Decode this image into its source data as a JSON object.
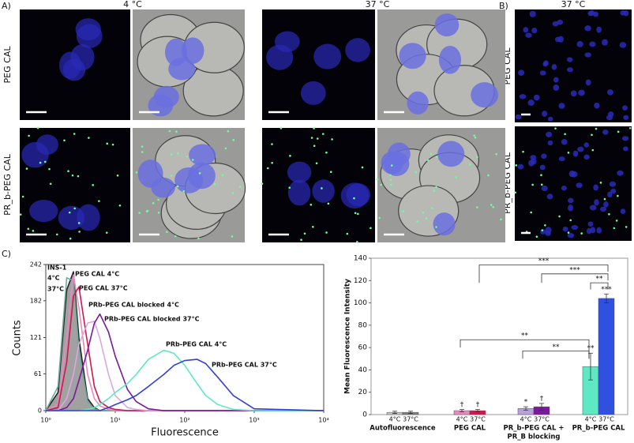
{
  "panel_a": {
    "label": "A)",
    "columns": [
      "4 °C",
      "37 °C"
    ],
    "rows": [
      "PEG CAL",
      "PR_b-PEG CAL"
    ]
  },
  "panel_b": {
    "label": "B)",
    "column": "37 °C",
    "rows": [
      "PEG CAL",
      "PR_b-PEG CAL"
    ]
  },
  "panel_c": {
    "label": "C)"
  },
  "chart_data": [
    {
      "type": "line",
      "xlabel": "Fluorescence",
      "ylabel": "Counts",
      "log_x": true,
      "annotation": "INS-1",
      "x": [
        1,
        1.5,
        2,
        2.5,
        3,
        4,
        5,
        6,
        8,
        10,
        15,
        20,
        30,
        50,
        70,
        100,
        150,
        200,
        300,
        500,
        1000,
        10000
      ],
      "xlim": [
        1,
        10000
      ],
      "xticks": [
        {
          "value": 1,
          "label": "10⁰"
        },
        {
          "value": 10,
          "label": "10¹"
        },
        {
          "value": 100,
          "label": "10²"
        },
        {
          "value": 1000,
          "label": "10³"
        },
        {
          "value": 10000,
          "label": "10⁴"
        }
      ],
      "ylim": [
        0,
        242
      ],
      "yticks": [
        0,
        61,
        121,
        182,
        242
      ],
      "series": [
        {
          "name": "4°C",
          "color": "#222222",
          "fill": "#8a8a8a",
          "values": [
            0,
            30,
            200,
            230,
            120,
            20,
            5,
            0,
            0,
            0,
            0,
            0,
            0,
            0,
            0,
            0,
            0,
            0,
            0,
            0,
            0,
            0
          ]
        },
        {
          "name": "37°C",
          "color": "#6fa89a",
          "values": [
            0,
            40,
            220,
            215,
            100,
            15,
            3,
            0,
            0,
            0,
            0,
            0,
            0,
            0,
            0,
            0,
            0,
            0,
            0,
            0,
            0,
            0
          ]
        },
        {
          "name": "PEG CAL 4°C",
          "color": "#e88ac0",
          "values": [
            0,
            10,
            120,
            225,
            170,
            60,
            20,
            8,
            2,
            0,
            0,
            0,
            0,
            0,
            0,
            0,
            0,
            0,
            0,
            0,
            0,
            0
          ]
        },
        {
          "name": "PEG CAL 37°C",
          "color": "#d0184a",
          "values": [
            0,
            5,
            80,
            190,
            205,
            110,
            40,
            15,
            5,
            2,
            0,
            0,
            0,
            0,
            0,
            0,
            0,
            0,
            0,
            0,
            0,
            0
          ]
        },
        {
          "name": "PRb-PEG CAL blocked 4°C",
          "color": "#d9a8e0",
          "values": [
            0,
            0,
            20,
            60,
            110,
            145,
            148,
            120,
            60,
            25,
            5,
            2,
            0,
            0,
            0,
            0,
            0,
            0,
            0,
            0,
            0,
            0
          ]
        },
        {
          "name": "PRb-PEG CAL blocked 37°C",
          "color": "#7a1a9a",
          "values": [
            0,
            0,
            5,
            20,
            50,
            100,
            145,
            160,
            130,
            90,
            35,
            15,
            3,
            0,
            0,
            0,
            0,
            0,
            0,
            0,
            0,
            0
          ]
        },
        {
          "name": "PRb-PEG CAL 4°C",
          "color": "#5fe8c4",
          "values": [
            0,
            0,
            0,
            0,
            0,
            2,
            5,
            10,
            20,
            30,
            45,
            60,
            85,
            100,
            95,
            75,
            45,
            25,
            10,
            2,
            0,
            0
          ]
        },
        {
          "name": "PRb-PEG CAL 37°C",
          "color": "#3040d8",
          "values": [
            0,
            0,
            0,
            0,
            0,
            0,
            0,
            0,
            5,
            10,
            18,
            25,
            40,
            60,
            75,
            83,
            85,
            78,
            55,
            25,
            3,
            0
          ]
        }
      ]
    },
    {
      "type": "bar",
      "ylabel": "Mean Fluorescence Intensity",
      "categories": [
        "Autofluorescence",
        "PEG CAL",
        [
          "PR_b-PEG CAL +",
          "PR_B blocking"
        ],
        "PR_b-PEG CAL"
      ],
      "ylim": [
        0,
        140
      ],
      "yticks": [
        0,
        20,
        40,
        60,
        80,
        100,
        120,
        140
      ],
      "series": [
        {
          "name": "4°C",
          "colors": [
            "#c8c8c8",
            "#e88ac0",
            "#b8a0d8",
            "#5fe8c4"
          ],
          "values": [
            2,
            3.5,
            5.5,
            43
          ],
          "errors": [
            1,
            1,
            1.5,
            12
          ],
          "marks": [
            null,
            "†",
            "*",
            "**"
          ]
        },
        {
          "name": "37°C",
          "colors": [
            "#808080",
            "#d0184a",
            "#7a1a9a",
            "#3050e0"
          ],
          "values": [
            2,
            3.5,
            7,
            104
          ],
          "errors": [
            1,
            1,
            3,
            4
          ],
          "marks": [
            null,
            "†",
            "†",
            "***"
          ]
        }
      ],
      "significance": [
        "***",
        "***",
        "**",
        "**",
        "**"
      ]
    }
  ]
}
